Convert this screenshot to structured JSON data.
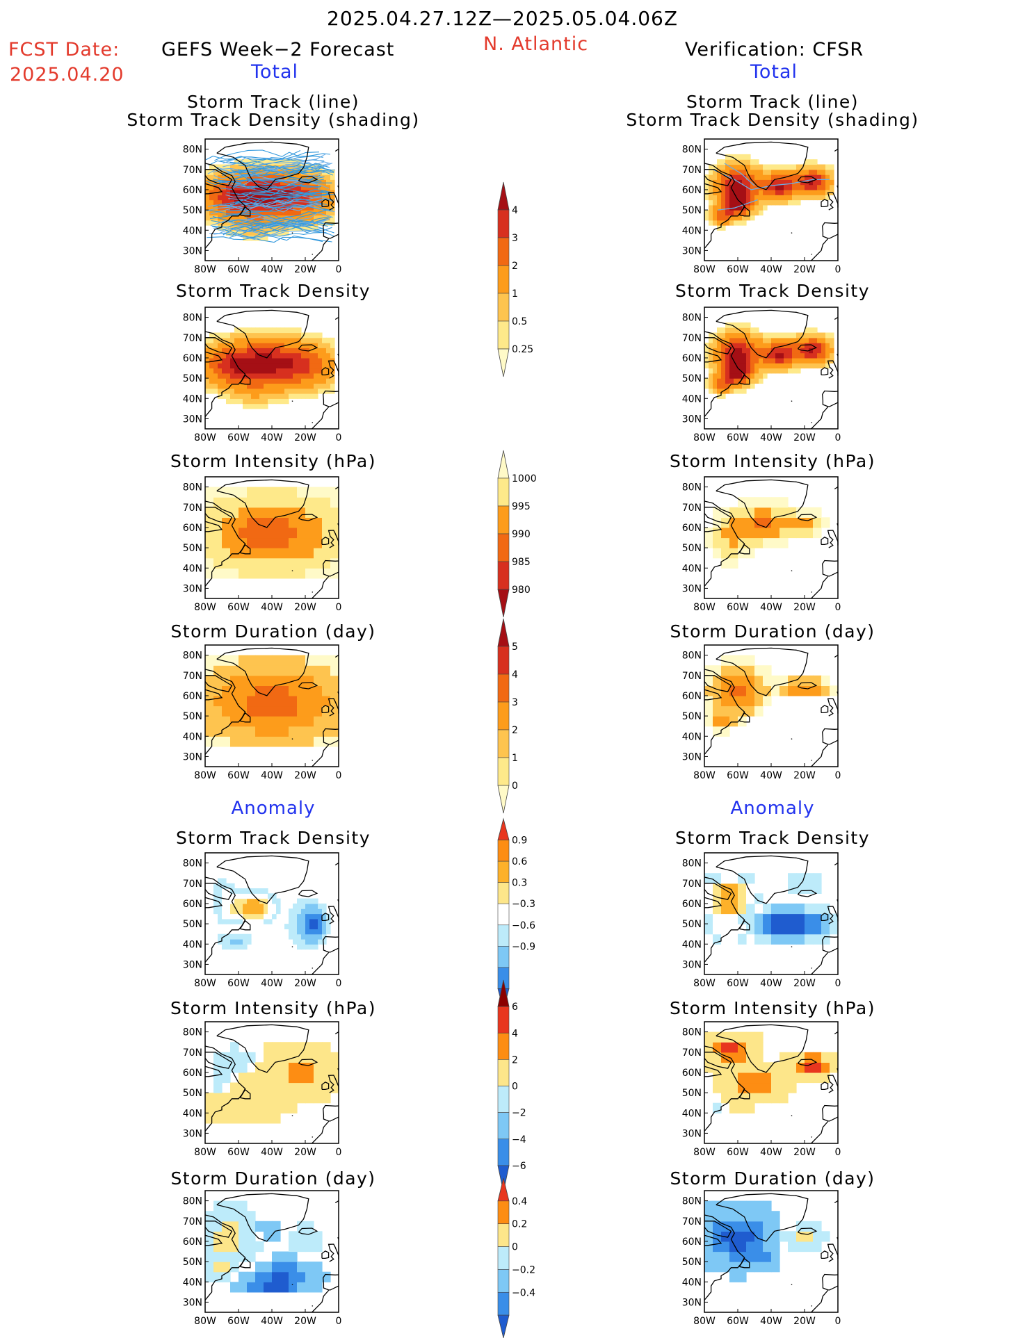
{
  "header": {
    "period": "2025.04.27.12Z—2025.05.04.06Z",
    "fcst_label": "FCST Date:",
    "fcst_date": "2025.04.20",
    "model": "GEFS Week−2 Forecast",
    "region": "N. Atlantic",
    "verification": "Verification: CFSR",
    "total_left": "Total",
    "total_right": "Total",
    "anomaly_left": "Anomaly",
    "anomaly_right": "Anomaly"
  },
  "panel_titles": {
    "track_line": "Storm Track (line)",
    "track_shading": "Storm Track Density (shading)",
    "density": "Storm Track Density",
    "intensity": "Storm Intensity (hPa)",
    "duration": "Storm Duration (day)"
  },
  "colors": {
    "title_red": "#e33a2c",
    "title_blue": "#2233ee",
    "land_outline": "#000000",
    "track_lines": "#3399dd"
  },
  "chart_data": {
    "type": "heatmap",
    "map_axes": {
      "lon_ticks": [
        "80W",
        "60W",
        "40W",
        "20W",
        "0"
      ],
      "lat_ticks": [
        "80N",
        "70N",
        "60N",
        "50N",
        "40N",
        "30N"
      ],
      "lon_range": [
        -80,
        0
      ],
      "lat_range": [
        25,
        85
      ]
    },
    "colorbars": [
      {
        "name": "total_density",
        "ticks": [
          "4",
          "3",
          "2",
          "1",
          "0.5",
          "0.25"
        ],
        "colors": [
          "#a50f15",
          "#d7301f",
          "#f16913",
          "#fd9c1b",
          "#fec44f",
          "#fee98a",
          "#fffac8"
        ]
      },
      {
        "name": "total_intensity",
        "ticks": [
          "1000",
          "995",
          "990",
          "985",
          "980"
        ],
        "colors": [
          "#fffac8",
          "#fee98a",
          "#fd9c1b",
          "#f16913",
          "#d7301f",
          "#a50f15"
        ]
      },
      {
        "name": "total_duration",
        "ticks": [
          "5",
          "4",
          "3",
          "2",
          "1",
          "0"
        ],
        "colors": [
          "#a50f15",
          "#d7301f",
          "#f16913",
          "#fd9c1b",
          "#fec44f",
          "#fee98a",
          "#fffac8"
        ]
      },
      {
        "name": "anom_density",
        "ticks": [
          "0.9",
          "0.6",
          "0.3",
          "−0.3",
          "−0.6",
          "−0.9"
        ],
        "colors": [
          "#e8361e",
          "#fd8d13",
          "#fdb12a",
          "#fde68a",
          "#ffffff",
          "#bdebfa",
          "#7ec8f5",
          "#3a8ee8",
          "#1f5ccf"
        ]
      },
      {
        "name": "anom_intensity",
        "ticks": [
          "6",
          "4",
          "2",
          "0",
          "−2",
          "−4",
          "−6"
        ],
        "colors": [
          "#8b0000",
          "#e8361e",
          "#fd8d13",
          "#fde68a",
          "#bdebfa",
          "#7ec8f5",
          "#3a8ee8",
          "#1f5ccf"
        ]
      },
      {
        "name": "anom_duration",
        "ticks": [
          "0.4",
          "0.2",
          "0",
          "−0.2",
          "−0.4"
        ],
        "colors": [
          "#e8361e",
          "#fd8d13",
          "#fde68a",
          "#bdebfa",
          "#7ec8f5",
          "#3a8ee8",
          "#1f5ccf"
        ]
      }
    ],
    "panels": [
      {
        "id": "fc-track",
        "title": "Storm Track (line)",
        "subtitle": "Storm Track Density (shading)",
        "source": "GEFS"
      },
      {
        "id": "fc-density",
        "title": "Storm Track Density",
        "source": "GEFS"
      },
      {
        "id": "fc-intensity",
        "title": "Storm Intensity (hPa)",
        "source": "GEFS"
      },
      {
        "id": "fc-duration",
        "title": "Storm Duration (day)",
        "source": "GEFS"
      },
      {
        "id": "fc-anom-density",
        "title": "Storm Track Density",
        "source": "GEFS"
      },
      {
        "id": "fc-anom-intensity",
        "title": "Storm Intensity (hPa)",
        "source": "GEFS"
      },
      {
        "id": "fc-anom-duration",
        "title": "Storm Duration (day)",
        "source": "GEFS"
      },
      {
        "id": "vf-track",
        "title": "Storm Track (line)",
        "subtitle": "Storm Track Density (shading)",
        "source": "CFSR"
      },
      {
        "id": "vf-density",
        "title": "Storm Track Density",
        "source": "CFSR"
      },
      {
        "id": "vf-intensity",
        "title": "Storm Intensity (hPa)",
        "source": "CFSR"
      },
      {
        "id": "vf-duration",
        "title": "Storm Duration (day)",
        "source": "CFSR"
      },
      {
        "id": "vf-anom-density",
        "title": "Storm Track Density",
        "source": "CFSR"
      },
      {
        "id": "vf-anom-intensity",
        "title": "Storm Intensity (hPa)",
        "source": "CFSR"
      },
      {
        "id": "vf-anom-duration",
        "title": "Storm Duration (day)",
        "source": "CFSR"
      }
    ]
  }
}
